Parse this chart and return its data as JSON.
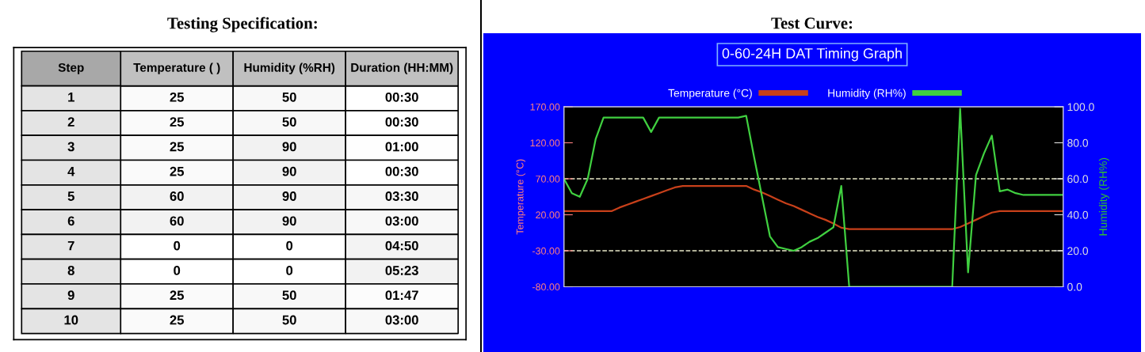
{
  "chart_data": [
    {
      "type": "heatmap",
      "title": "Testing Specification:",
      "ylabel": "Step",
      "categories": [
        "Temperature ( )",
        "Humidity (%RH)",
        "Duration (HH:MM)"
      ],
      "y_categories": [
        "1",
        "2",
        "3",
        "4",
        "5",
        "6",
        "7",
        "8",
        "9",
        "10"
      ],
      "cells": [
        [
          25,
          50,
          0.5
        ],
        [
          25,
          50,
          0.5
        ],
        [
          25,
          90,
          1
        ],
        [
          25,
          90,
          0.5
        ],
        [
          60,
          90,
          3.5
        ],
        [
          60,
          90,
          3
        ],
        [
          0,
          0,
          4.833
        ],
        [
          0,
          0,
          5.383
        ],
        [
          25,
          50,
          1.783
        ],
        [
          25,
          50,
          3
        ]
      ],
      "cell_labels": [
        [
          "25",
          "50",
          "00:30"
        ],
        [
          "25",
          "50",
          "00:30"
        ],
        [
          "25",
          "90",
          "01:00"
        ],
        [
          "25",
          "90",
          "00:30"
        ],
        [
          "60",
          "90",
          "03:30"
        ],
        [
          "60",
          "90",
          "03:00"
        ],
        [
          "0",
          "0",
          "04:50"
        ],
        [
          "0",
          "0",
          "05:23"
        ],
        [
          "25",
          "50",
          "01:47"
        ],
        [
          "25",
          "50",
          "03:00"
        ]
      ]
    },
    {
      "type": "line",
      "title": "Test Curve:",
      "subtitle": "0-60-24H DAT Timing Graph",
      "ylabel": "Temperature (°C)",
      "y2label": "Humidity (RH%)",
      "categories": [
        null,
        null,
        null,
        null,
        null,
        null,
        null,
        null,
        null,
        null,
        null,
        null,
        null,
        null,
        null,
        null,
        null,
        null,
        null,
        null,
        null,
        null,
        null,
        null,
        null,
        null,
        null,
        null,
        null,
        null,
        null,
        null,
        null,
        null,
        null,
        null,
        null,
        null,
        null,
        null,
        null,
        null,
        null,
        null,
        null,
        null,
        null,
        null,
        null,
        null,
        null,
        null,
        null,
        null,
        null,
        null,
        null,
        null,
        null,
        null,
        null,
        null,
        null,
        null
      ],
      "series": [
        {
          "name": "Temperature (°C)",
          "color": "#c8401a",
          "values": [
            25,
            25,
            25,
            25,
            25,
            25,
            25,
            30,
            34,
            38,
            42,
            46,
            50,
            54,
            58,
            60,
            60,
            60,
            60,
            60,
            60,
            60,
            60,
            60,
            55,
            51,
            46,
            41,
            36,
            32,
            27,
            22,
            17,
            13,
            8,
            2,
            0,
            0,
            0,
            0,
            0,
            0,
            0,
            0,
            0,
            0,
            0,
            0,
            0,
            0,
            3,
            8,
            13,
            18,
            23,
            25,
            25,
            25,
            25,
            25,
            25,
            25,
            25,
            25
          ]
        },
        {
          "name": "Humidity (RH%)",
          "color": "#40d040",
          "axis": "y2",
          "values": [
            60,
            52,
            50,
            60,
            82,
            94,
            94,
            94,
            94,
            94,
            94,
            86,
            94,
            94,
            94,
            94,
            94,
            94,
            94,
            94,
            94,
            94,
            94,
            95,
            72,
            50,
            28,
            22,
            21,
            20,
            22,
            25,
            27,
            30,
            33,
            56,
            0,
            0,
            0,
            0,
            0,
            0,
            0,
            0,
            0,
            0,
            0,
            0,
            0,
            0,
            99,
            8,
            62,
            74,
            84,
            53,
            54,
            52,
            51,
            51,
            51,
            51,
            51,
            51
          ]
        }
      ],
      "ylim": [
        -80,
        170
      ],
      "yticks": [
        {
          "value": -80,
          "label": "-80.00"
        },
        {
          "value": -30,
          "label": "-30.00"
        },
        {
          "value": 20,
          "label": "20.00"
        },
        {
          "value": 70,
          "label": "70.00"
        },
        {
          "value": 120,
          "label": "120.00"
        },
        {
          "value": 170,
          "label": "170.00"
        }
      ],
      "y2lim": [
        0,
        100
      ],
      "y2ticks": [
        {
          "value": 0,
          "label": "0.0"
        },
        {
          "value": 20,
          "label": "20.0"
        },
        {
          "value": 40,
          "label": "40.0"
        },
        {
          "value": 60,
          "label": "60.0"
        },
        {
          "value": 80,
          "label": "80.0"
        },
        {
          "value": 100,
          "label": "100.0"
        }
      ],
      "ref_lines": [
        {
          "axis": "y",
          "value": 70,
          "color": "#e8e8c8",
          "line_style": "dashed"
        },
        {
          "axis": "y",
          "value": -30,
          "color": "#e8e8c8",
          "line_style": "dashed"
        }
      ],
      "legend": "top"
    }
  ]
}
